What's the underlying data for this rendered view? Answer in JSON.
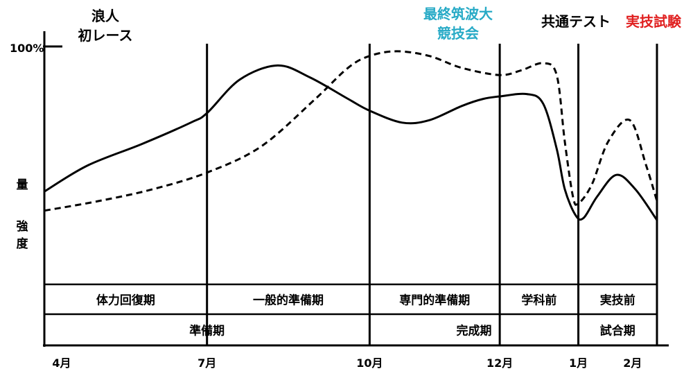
{
  "annotations": {
    "ronin_line1": "浪人",
    "ronin_line2": "初レース",
    "final_line1": "最終筑波大",
    "final_line2": "競技会",
    "common_test": "共通テスト",
    "practical_exam": "実技試験"
  },
  "y_axis": {
    "top_tick": "100%",
    "label_volume": "量",
    "label_intensity": "強度"
  },
  "phases": [
    {
      "label": "体力回復期",
      "from": 0,
      "to": 3
    },
    {
      "label": "一般的準備期",
      "from": 3,
      "to": 6
    },
    {
      "label": "専門的準備期",
      "from": 6,
      "to": 8.4
    },
    {
      "label": "学科前",
      "from": 8.4,
      "to": 9.85
    },
    {
      "label": "実技前",
      "from": 9.85,
      "to": 11.3
    }
  ],
  "periods": [
    {
      "label": "準備期",
      "from": 0,
      "to": 6
    },
    {
      "label": "完成期",
      "from": 6,
      "to": 9.85
    },
    {
      "label": "試合期",
      "from": 9.85,
      "to": 11.3
    }
  ],
  "chart_data": {
    "type": "line",
    "x_unit": "months since April",
    "x_ticks": [
      {
        "x": 0,
        "label": "4月"
      },
      {
        "x": 3,
        "label": "7月"
      },
      {
        "x": 6,
        "label": "10月"
      },
      {
        "x": 8.4,
        "label": "12月"
      },
      {
        "x": 9.85,
        "label": "1月"
      },
      {
        "x": 10.85,
        "label": "2月"
      }
    ],
    "vertical_markers": [
      3,
      6,
      8.4,
      9.85,
      11.3
    ],
    "ylim": [
      0,
      100
    ],
    "y_ticks": [
      {
        "y": 100,
        "label": "100%"
      }
    ],
    "series": [
      {
        "name": "量",
        "style": "solid",
        "color": "#000000",
        "x": [
          0,
          0.8,
          1.8,
          2.7,
          3.0,
          3.6,
          4.3,
          4.9,
          5.6,
          6.0,
          6.6,
          7.1,
          7.7,
          8.1,
          8.4,
          8.9,
          9.2,
          9.45,
          9.6,
          9.8,
          9.95,
          10.2,
          10.55,
          10.9,
          11.3
        ],
        "y": [
          39,
          50,
          59,
          68,
          72,
          86,
          92,
          87,
          78,
          73,
          68,
          69,
          75,
          78,
          79,
          80,
          76,
          57,
          40,
          29,
          28,
          37,
          46,
          40,
          27
        ]
      },
      {
        "name": "強度",
        "style": "dashed",
        "color": "#000000",
        "x": [
          0,
          1.0,
          2.0,
          3.0,
          4.0,
          5.0,
          5.6,
          6.0,
          6.5,
          7.1,
          7.7,
          8.4,
          8.8,
          9.2,
          9.45,
          9.6,
          9.75,
          9.85,
          10.1,
          10.4,
          10.8,
          11.1,
          11.3
        ],
        "y": [
          31,
          35,
          40,
          47,
          58,
          78,
          91,
          96,
          98,
          96,
          91,
          88,
          90,
          93,
          88,
          60,
          37,
          34,
          42,
          60,
          69,
          50,
          35
        ]
      }
    ]
  }
}
